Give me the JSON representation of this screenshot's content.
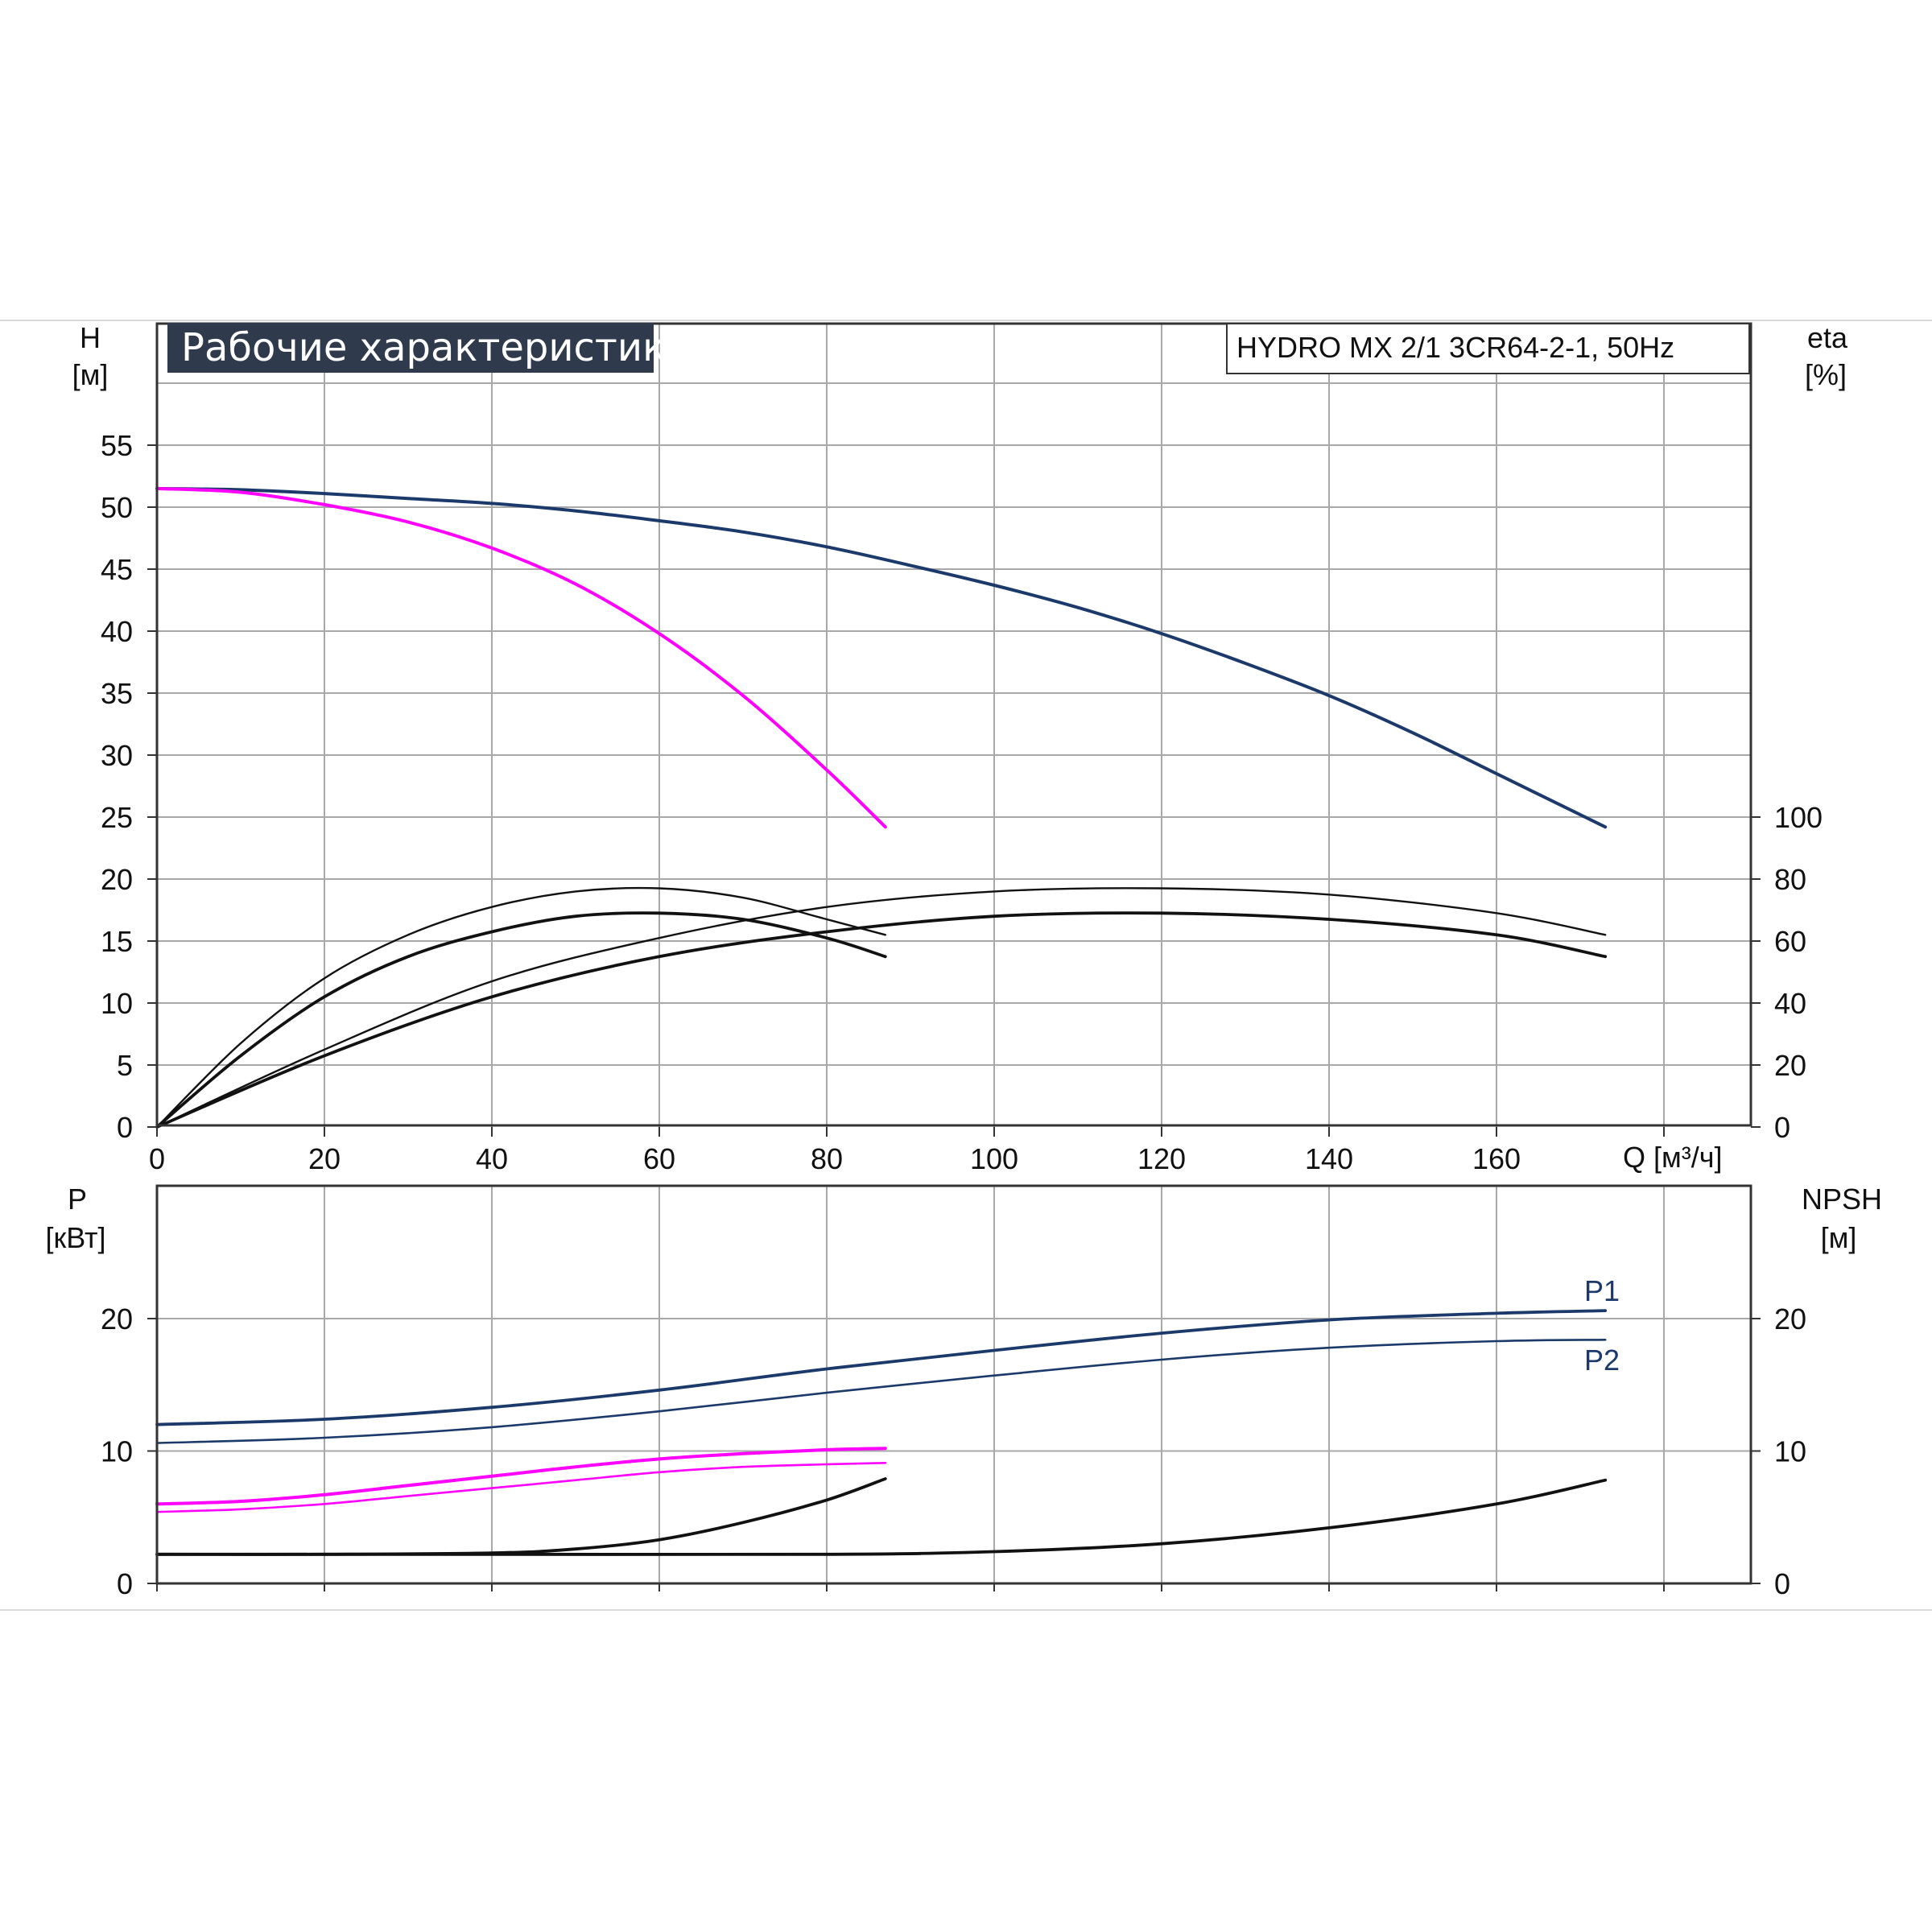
{
  "chart_data": [
    {
      "panel": "top",
      "type": "line",
      "title": "Рабочие характеристики",
      "model": "HYDRO MX 2/1 3CR64-2-1, 50Hz",
      "xlabel": "Q [м³/ч]",
      "x_unit_label": "Q [м³/ч]",
      "x_ticks": [
        0,
        20,
        40,
        60,
        80,
        100,
        120,
        140,
        160
      ],
      "xlim": [
        0,
        190
      ],
      "ylabel_left": "H",
      "ylabel_left_unit": "[м]",
      "y_left_ticks": [
        0,
        5,
        10,
        15,
        20,
        25,
        30,
        35,
        40,
        45,
        50,
        55
      ],
      "ylim_left": [
        0,
        60
      ],
      "ylabel_right": "eta",
      "ylabel_right_unit": "[%]",
      "y_right_ticks": [
        0,
        20,
        40,
        60,
        80,
        100
      ],
      "ylim_right": [
        0,
        240
      ],
      "grid": true,
      "series": [
        {
          "axis": "left",
          "color": "#1b3a6b",
          "x": [
            0,
            10,
            20,
            30,
            40,
            50,
            60,
            70,
            80,
            90,
            100,
            110,
            120,
            130,
            140,
            150,
            160,
            173
          ],
          "y": [
            51.5,
            51.4,
            51.1,
            50.7,
            50.3,
            49.7,
            48.9,
            48.0,
            46.8,
            45.3,
            43.7,
            41.9,
            39.8,
            37.4,
            34.8,
            31.8,
            28.5,
            24.2
          ]
        },
        {
          "axis": "left",
          "color": "#ff00ff",
          "x": [
            0,
            10,
            20,
            30,
            40,
            50,
            60,
            70,
            80,
            87
          ],
          "y": [
            51.5,
            51.2,
            50.2,
            48.8,
            46.7,
            43.8,
            39.8,
            34.8,
            28.8,
            24.2
          ]
        },
        {
          "axis": "right",
          "color": "#111111",
          "x": [
            0,
            10,
            20,
            30,
            40,
            50,
            60,
            70,
            80,
            87
          ],
          "y": [
            0,
            27,
            48,
            62,
            71,
            76,
            77,
            74,
            67,
            62
          ]
        },
        {
          "axis": "right",
          "color": "#111111",
          "x": [
            0,
            10,
            20,
            30,
            40,
            50,
            60,
            70,
            80,
            87
          ],
          "y": [
            0,
            23,
            42,
            55,
            63,
            68,
            69,
            67,
            61,
            55
          ]
        },
        {
          "axis": "right",
          "color": "#111111",
          "x": [
            0,
            20,
            40,
            60,
            80,
            100,
            120,
            140,
            160,
            173
          ],
          "y": [
            0,
            25,
            47,
            61,
            71,
            76,
            77,
            75,
            69,
            62
          ]
        },
        {
          "axis": "right",
          "color": "#111111",
          "x": [
            0,
            20,
            40,
            60,
            80,
            100,
            120,
            140,
            160,
            173
          ],
          "y": [
            0,
            23,
            42,
            55,
            63,
            68,
            69,
            67,
            62,
            55
          ]
        }
      ]
    },
    {
      "panel": "bottom",
      "type": "line",
      "ylabel_left": "P",
      "ylabel_left_unit": "[кВт]",
      "y_left_ticks": [
        0,
        10,
        20
      ],
      "ylim_left": [
        0,
        30
      ],
      "ylabel_right": "NPSH",
      "ylabel_right_unit": "[м]",
      "y_right_ticks": [
        0,
        10,
        20
      ],
      "ylim_right": [
        0,
        30
      ],
      "xlim": [
        0,
        190
      ],
      "grid": true,
      "series": [
        {
          "name": "P1",
          "axis": "left",
          "color": "#1b3a6b",
          "x": [
            0,
            20,
            40,
            60,
            80,
            100,
            120,
            140,
            160,
            173
          ],
          "y": [
            12.0,
            12.4,
            13.3,
            14.6,
            16.2,
            17.6,
            18.9,
            19.9,
            20.4,
            20.6
          ]
        },
        {
          "name": "P2",
          "axis": "left",
          "color": "#1b3a6b",
          "x": [
            0,
            20,
            40,
            60,
            80,
            100,
            120,
            140,
            160,
            173
          ],
          "y": [
            10.6,
            11.0,
            11.8,
            13.0,
            14.4,
            15.7,
            16.9,
            17.8,
            18.3,
            18.4
          ]
        },
        {
          "axis": "left",
          "color": "#ff00ff",
          "x": [
            0,
            10,
            20,
            30,
            40,
            50,
            60,
            70,
            80,
            87
          ],
          "y": [
            6.0,
            6.2,
            6.7,
            7.4,
            8.1,
            8.8,
            9.4,
            9.8,
            10.1,
            10.2
          ]
        },
        {
          "axis": "left",
          "color": "#ff00ff",
          "x": [
            0,
            10,
            20,
            30,
            40,
            50,
            60,
            70,
            80,
            87
          ],
          "y": [
            5.4,
            5.6,
            6.0,
            6.6,
            7.2,
            7.8,
            8.4,
            8.8,
            9.0,
            9.1
          ]
        },
        {
          "axis": "right",
          "color": "#111111",
          "x": [
            0,
            20,
            40,
            50,
            60,
            70,
            80,
            87
          ],
          "y": [
            2.2,
            2.2,
            2.3,
            2.6,
            3.3,
            4.6,
            6.3,
            7.9
          ]
        },
        {
          "axis": "right",
          "color": "#111111",
          "x": [
            0,
            40,
            80,
            100,
            120,
            140,
            160,
            173
          ],
          "y": [
            2.2,
            2.2,
            2.2,
            2.4,
            3.0,
            4.2,
            6.0,
            7.8
          ]
        }
      ]
    }
  ]
}
